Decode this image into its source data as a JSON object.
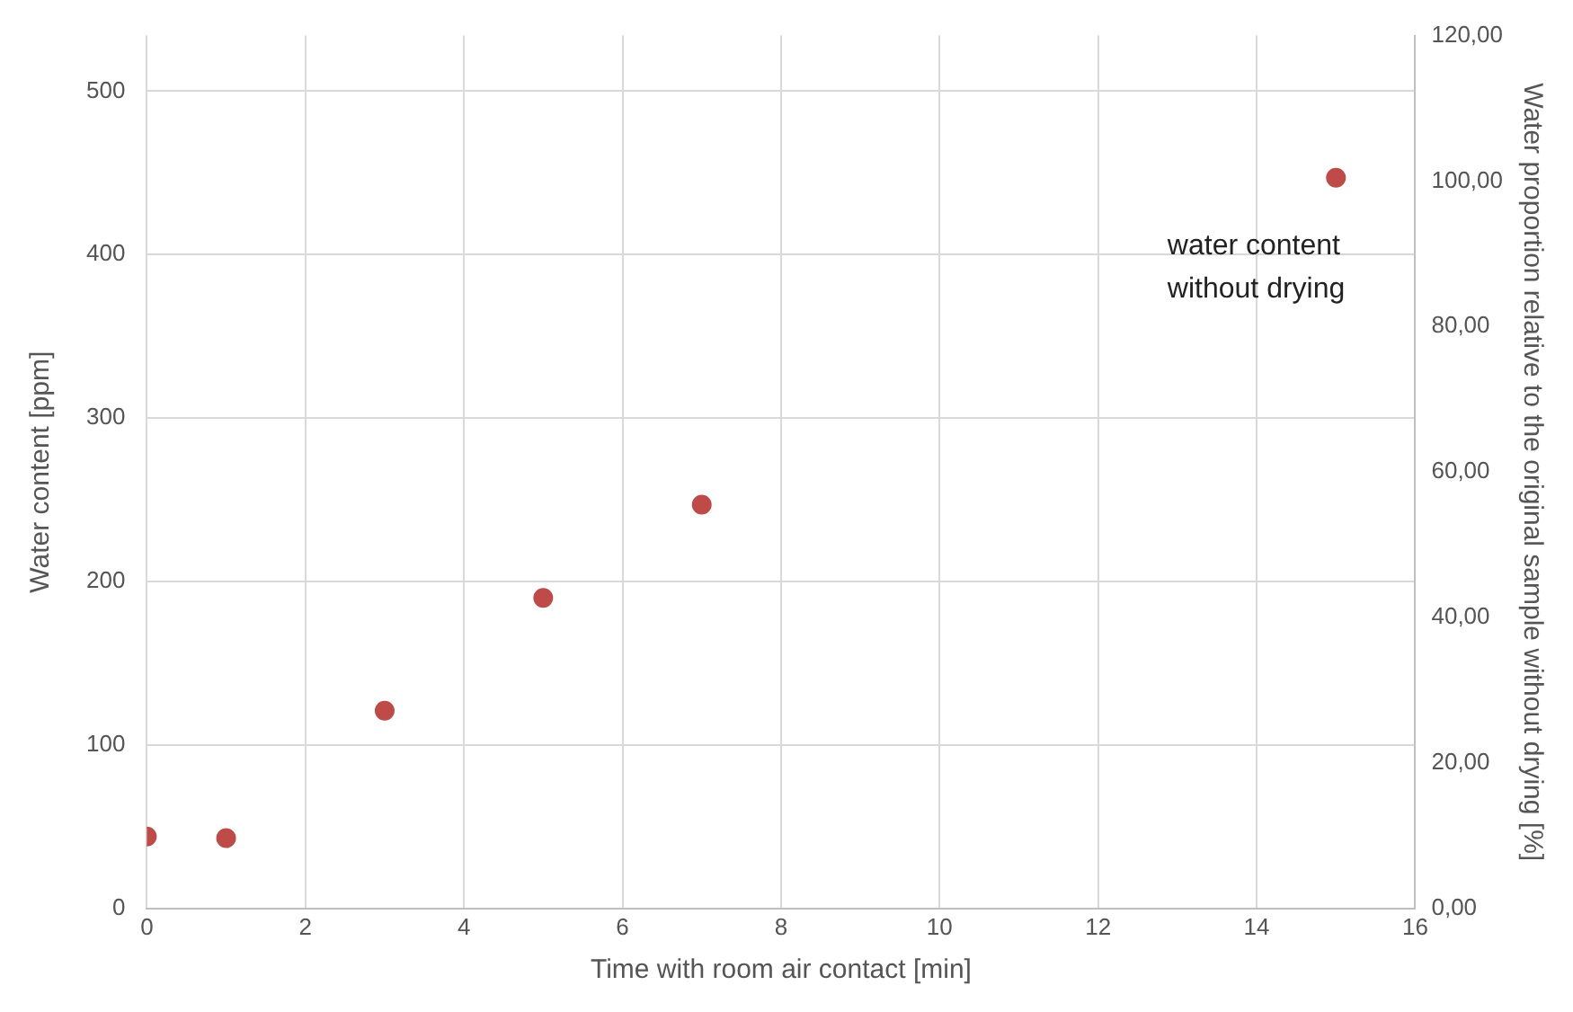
{
  "chart_data": {
    "type": "scatter",
    "xlabel": "Time with room air contact [min]",
    "ylabel": "Water content [ppm]",
    "y2label": "Water proportion relative to the original sample without drying [%]",
    "x": [
      0,
      1,
      3,
      5,
      7,
      15
    ],
    "series": [
      {
        "color": "#be4b48",
        "values": [
          44,
          43,
          121,
          190,
          247,
          447
        ]
      }
    ],
    "xlim": [
      0,
      16
    ],
    "xticks": [
      0,
      2,
      4,
      6,
      8,
      10,
      12,
      14,
      16
    ],
    "ylim": [
      0,
      534
    ],
    "yticks": [
      0,
      100,
      200,
      300,
      400,
      500
    ],
    "y2lim": [
      0,
      120
    ],
    "y2ticks": [
      {
        "value": 0,
        "label": "0,00"
      },
      {
        "value": 20,
        "label": "20,00"
      },
      {
        "value": 40,
        "label": "40,00"
      },
      {
        "value": 60,
        "label": "60,00"
      },
      {
        "value": 80,
        "label": "80,00"
      },
      {
        "value": 100,
        "label": "100,00"
      },
      {
        "value": 120,
        "label": "120,00"
      }
    ],
    "annotations": [
      {
        "text": "water content without drying",
        "x": 15,
        "y": 447
      }
    ],
    "grid": true,
    "legend": false,
    "marker": "circle"
  }
}
